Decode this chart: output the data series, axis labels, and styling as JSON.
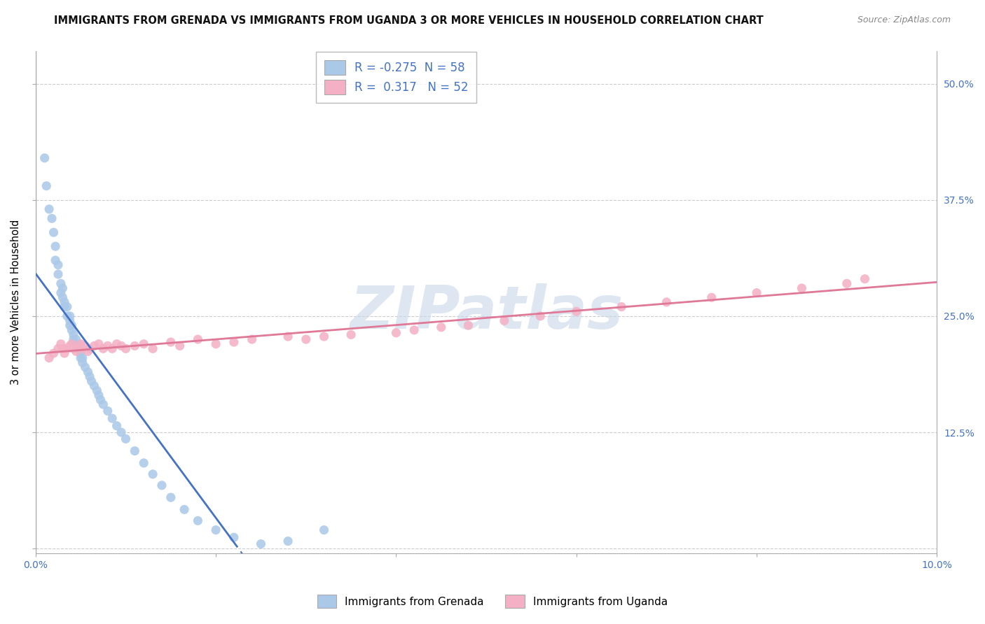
{
  "title": "IMMIGRANTS FROM GRENADA VS IMMIGRANTS FROM UGANDA 3 OR MORE VEHICLES IN HOUSEHOLD CORRELATION CHART",
  "source": "Source: ZipAtlas.com",
  "ylabel": "3 or more Vehicles in Household",
  "xlim": [
    0.0,
    0.1
  ],
  "ylim": [
    -0.005,
    0.535
  ],
  "xticks": [
    0.0,
    0.02,
    0.04,
    0.06,
    0.08,
    0.1
  ],
  "xtick_labels": [
    "0.0%",
    "",
    "",
    "",
    "",
    "10.0%"
  ],
  "ytick_positions": [
    0.0,
    0.125,
    0.25,
    0.375,
    0.5
  ],
  "ytick_labels": [
    "",
    "12.5%",
    "25.0%",
    "37.5%",
    "50.0%"
  ],
  "watermark": "ZIPatlas",
  "legend_r_grenada": "-0.275",
  "legend_n_grenada": "58",
  "legend_r_uganda": "0.317",
  "legend_n_uganda": "52",
  "grenada_color": "#aac8e8",
  "uganda_color": "#f4b0c4",
  "line_grenada_color": "#4472c4",
  "line_uganda_color": "#e07898",
  "grenada_x": [
    0.001,
    0.0012,
    0.0015,
    0.0018,
    0.002,
    0.0022,
    0.0022,
    0.0025,
    0.0025,
    0.0028,
    0.0028,
    0.003,
    0.003,
    0.0032,
    0.0032,
    0.0035,
    0.0035,
    0.0038,
    0.0038,
    0.0038,
    0.004,
    0.004,
    0.0042,
    0.0042,
    0.0045,
    0.0045,
    0.0048,
    0.0048,
    0.005,
    0.005,
    0.0052,
    0.0052,
    0.0055,
    0.0058,
    0.006,
    0.0062,
    0.0065,
    0.0068,
    0.007,
    0.0072,
    0.0075,
    0.008,
    0.0085,
    0.009,
    0.0095,
    0.01,
    0.011,
    0.012,
    0.013,
    0.014,
    0.015,
    0.0165,
    0.018,
    0.02,
    0.022,
    0.025,
    0.028,
    0.032
  ],
  "grenada_y": [
    0.42,
    0.39,
    0.365,
    0.355,
    0.34,
    0.325,
    0.31,
    0.305,
    0.295,
    0.285,
    0.275,
    0.27,
    0.28,
    0.265,
    0.26,
    0.25,
    0.26,
    0.25,
    0.245,
    0.24,
    0.235,
    0.24,
    0.23,
    0.225,
    0.22,
    0.225,
    0.215,
    0.22,
    0.205,
    0.21,
    0.2,
    0.205,
    0.195,
    0.19,
    0.185,
    0.18,
    0.175,
    0.17,
    0.165,
    0.16,
    0.155,
    0.148,
    0.14,
    0.132,
    0.125,
    0.118,
    0.105,
    0.092,
    0.08,
    0.068,
    0.055,
    0.042,
    0.03,
    0.02,
    0.012,
    0.005,
    0.008,
    0.02
  ],
  "uganda_x": [
    0.0015,
    0.002,
    0.0025,
    0.0028,
    0.003,
    0.0032,
    0.0035,
    0.0038,
    0.004,
    0.0042,
    0.0045,
    0.0048,
    0.005,
    0.0052,
    0.0055,
    0.0058,
    0.006,
    0.0065,
    0.007,
    0.0075,
    0.008,
    0.0085,
    0.009,
    0.0095,
    0.01,
    0.011,
    0.012,
    0.013,
    0.015,
    0.016,
    0.018,
    0.02,
    0.022,
    0.024,
    0.028,
    0.03,
    0.032,
    0.035,
    0.04,
    0.042,
    0.045,
    0.048,
    0.052,
    0.056,
    0.06,
    0.065,
    0.07,
    0.075,
    0.08,
    0.085,
    0.09,
    0.092
  ],
  "uganda_y": [
    0.205,
    0.21,
    0.215,
    0.22,
    0.215,
    0.21,
    0.215,
    0.218,
    0.22,
    0.215,
    0.212,
    0.218,
    0.22,
    0.215,
    0.218,
    0.212,
    0.215,
    0.218,
    0.22,
    0.215,
    0.218,
    0.215,
    0.22,
    0.218,
    0.215,
    0.218,
    0.22,
    0.215,
    0.222,
    0.218,
    0.225,
    0.22,
    0.222,
    0.225,
    0.228,
    0.225,
    0.228,
    0.23,
    0.232,
    0.235,
    0.238,
    0.24,
    0.245,
    0.25,
    0.255,
    0.26,
    0.265,
    0.27,
    0.275,
    0.28,
    0.285,
    0.29
  ]
}
